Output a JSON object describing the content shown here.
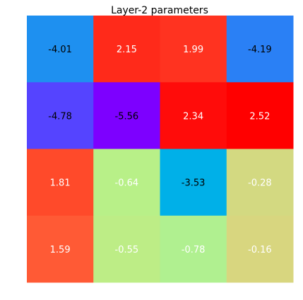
{
  "chart_data": {
    "type": "heatmap",
    "title": "Layer-2 parameters",
    "rows": 4,
    "cols": 4,
    "values": [
      [
        -4.01,
        2.15,
        1.99,
        -4.19
      ],
      [
        -4.78,
        -5.56,
        2.34,
        2.52
      ],
      [
        1.81,
        -0.64,
        -3.53,
        -0.28
      ],
      [
        1.59,
        -0.55,
        -0.78,
        -0.16
      ]
    ],
    "labels": [
      [
        "-4.01",
        "2.15",
        "1.99",
        "-4.19"
      ],
      [
        "-4.78",
        "-5.56",
        "2.34",
        "2.52"
      ],
      [
        "1.81",
        "-0.64",
        "-3.53",
        "-0.28"
      ],
      [
        "1.59",
        "-0.55",
        "-0.78",
        "-0.16"
      ]
    ],
    "colors": [
      [
        "#1e90f0",
        "#ff2a1a",
        "#ff3320",
        "#2a80f5"
      ],
      [
        "#5544ff",
        "#7d00ff",
        "#ff0c0a",
        "#ff0000"
      ],
      [
        "#ff4a2a",
        "#b8f088",
        "#00b0e8",
        "#d3d981"
      ],
      [
        "#ff5a35",
        "#bded86",
        "#b0f090",
        "#d8d67f"
      ]
    ],
    "label_colors": [
      [
        "#000000",
        "#ffffff",
        "#ffffff",
        "#000000"
      ],
      [
        "#000000",
        "#000000",
        "#ffffff",
        "#ffffff"
      ],
      [
        "#ffffff",
        "#ffffff",
        "#000000",
        "#ffffff"
      ],
      [
        "#ffffff",
        "#ffffff",
        "#ffffff",
        "#ffffff"
      ]
    ],
    "grid": false,
    "axes_visible": false,
    "legend": "none"
  }
}
